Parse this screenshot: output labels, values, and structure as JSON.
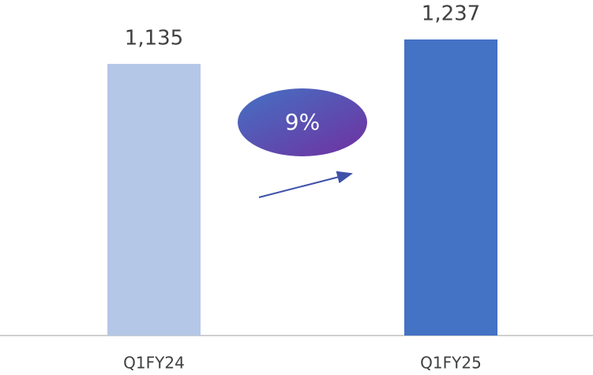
{
  "chart_data": {
    "type": "bar",
    "categories": [
      "Q1FY24",
      "Q1FY25"
    ],
    "values": [
      1135,
      1237
    ],
    "value_labels": [
      "1,135",
      "1,237"
    ],
    "colors": [
      "#b4c7e7",
      "#4472c4"
    ],
    "annotation": "9%"
  }
}
